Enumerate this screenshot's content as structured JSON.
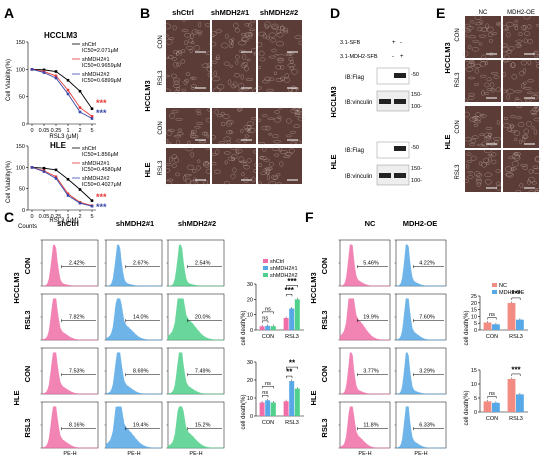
{
  "panels": {
    "a": "A",
    "b": "B",
    "c": "C",
    "d": "D",
    "e": "E",
    "f": "F"
  },
  "colors": {
    "black": "#000000",
    "red": "#e53935",
    "blue": "#3949ab",
    "pink": "#f06fa8",
    "lightblue": "#56a8e6",
    "green": "#4fd08b",
    "salmon": "#f28b82",
    "micro_bg": "#5b3c37"
  },
  "viability": {
    "ylabel": "Cell Viability(%)",
    "xlabel": "RSL3 (μM)",
    "stars": "***",
    "charts": [
      {
        "title": "HCCLM3",
        "legend": [
          {
            "name": "shCtrl",
            "ic50": "IC50=2.071μM"
          },
          {
            "name": "shMDH2#1",
            "ic50": "IC50=0.9659μM"
          },
          {
            "name": "shMDH2#2",
            "ic50": "IC50=0.6899μM"
          }
        ]
      },
      {
        "title": "HLE",
        "legend": [
          {
            "name": "shCtrl",
            "ic50": "IC50=1.856μM"
          },
          {
            "name": "shMDH2#1",
            "ic50": "IC50=0.4580μM"
          },
          {
            "name": "shMDH2#2",
            "ic50": "IC50=0.4027μM"
          }
        ]
      }
    ]
  },
  "chart_data": [
    {
      "type": "line",
      "title": "HCCLM3",
      "x": [
        0,
        0.05,
        0.25,
        1,
        2,
        5
      ],
      "xticklabels": [
        "0",
        "0.05",
        "0.25",
        "1",
        "2",
        "5"
      ],
      "ylim": [
        0,
        150
      ],
      "yticks": [
        0,
        50,
        100,
        150
      ],
      "xlabel": "RSL3 (μM)",
      "ylabel": "Cell Viability(%)",
      "series": [
        {
          "name": "shCtrl",
          "values": [
            100,
            99,
            96,
            80,
            60,
            28
          ]
        },
        {
          "name": "shMDH2#1",
          "values": [
            100,
            96,
            88,
            62,
            30,
            14
          ]
        },
        {
          "name": "shMDH2#2",
          "values": [
            100,
            94,
            84,
            55,
            22,
            10
          ]
        }
      ]
    },
    {
      "type": "line",
      "title": "HLE",
      "x": [
        0,
        0.05,
        0.25,
        1,
        2,
        5
      ],
      "xticklabels": [
        "0",
        "0.05",
        "0.25",
        "1",
        "2",
        "5"
      ],
      "ylim": [
        0,
        150
      ],
      "yticks": [
        0,
        50,
        100,
        150
      ],
      "xlabel": "RSL3 (μM)",
      "ylabel": "Cell Viability(%)",
      "series": [
        {
          "name": "shCtrl",
          "values": [
            100,
            98,
            94,
            72,
            48,
            22
          ]
        },
        {
          "name": "shMDH2#1",
          "values": [
            100,
            92,
            78,
            38,
            18,
            10
          ]
        },
        {
          "name": "shMDH2#2",
          "values": [
            100,
            90,
            74,
            34,
            16,
            9
          ]
        }
      ]
    },
    {
      "type": "bar",
      "ylabel": "cell death(%)",
      "categories": [
        "CON",
        "RSL3"
      ],
      "ylim": [
        0,
        30
      ],
      "yticks": [
        0,
        10,
        20,
        30
      ],
      "sig": {
        "con": "ns",
        "con_wide": "ns",
        "rsl3": "***",
        "rsl3_wide": "***"
      },
      "series": [
        {
          "name": "shCtrl",
          "values": [
            2.4,
            7.8
          ]
        },
        {
          "name": "shMDH2#1",
          "values": [
            2.7,
            14.0
          ]
        },
        {
          "name": "shMDH2#2",
          "values": [
            2.5,
            20.0
          ]
        }
      ]
    },
    {
      "type": "bar",
      "ylabel": "cell death(%)",
      "categories": [
        "CON",
        "RSL3"
      ],
      "ylim": [
        0,
        30
      ],
      "yticks": [
        0,
        10,
        20,
        30
      ],
      "sig": {
        "con": "ns",
        "con_wide": "ns",
        "rsl3": "**",
        "rsl3_wide": "**"
      },
      "series": [
        {
          "name": "shCtrl",
          "values": [
            7.5,
            8.2
          ]
        },
        {
          "name": "shMDH2#1",
          "values": [
            8.7,
            19.4
          ]
        },
        {
          "name": "shMDH2#2",
          "values": [
            7.5,
            15.2
          ]
        }
      ]
    },
    {
      "type": "bar",
      "ylabel": "cell death(%)",
      "categories": [
        "CON",
        "RSL3"
      ],
      "ylim": [
        0,
        25
      ],
      "yticks": [
        0,
        5,
        10,
        15,
        20,
        25
      ],
      "sig": {
        "con": "ns",
        "rsl3": "***"
      },
      "series": [
        {
          "name": "NC",
          "values": [
            5.5,
            19.9
          ]
        },
        {
          "name": "MDH2-OE",
          "values": [
            4.2,
            7.6
          ]
        }
      ]
    },
    {
      "type": "bar",
      "ylabel": "cell death(%)",
      "categories": [
        "CON",
        "RSL3"
      ],
      "ylim": [
        0,
        15
      ],
      "yticks": [
        0,
        5,
        10,
        15
      ],
      "sig": {
        "con": "ns",
        "rsl3": "***"
      },
      "series": [
        {
          "name": "NC",
          "values": [
            3.8,
            11.8
          ]
        },
        {
          "name": "MDH2-OE",
          "values": [
            3.3,
            6.3
          ]
        }
      ]
    }
  ],
  "microscopy_b": {
    "columns": [
      "shCtrl",
      "shMDH2#1",
      "shMDH2#2"
    ],
    "groups": [
      "HCCLM3",
      "HLE"
    ],
    "rows": [
      "CON",
      "RSL3",
      "CON",
      "RSL3"
    ]
  },
  "western": {
    "headers": [
      "3.1-SFB",
      "3.1-MDH2-SFB"
    ],
    "signs": [
      [
        "+",
        "-"
      ],
      [
        "-",
        "+"
      ]
    ],
    "groups": [
      "HCCLM3",
      "HLE"
    ],
    "rows": [
      {
        "label": "IB:Flag",
        "marker": "-50"
      },
      {
        "label": "IB:vinculin",
        "marker_top": "150-",
        "marker_bottom": "100-"
      },
      {
        "label": "IB:Flag",
        "marker": "-50"
      },
      {
        "label": "IB:vinculin",
        "marker_top": "150-",
        "marker_bottom": "100-"
      }
    ]
  },
  "microscopy_e": {
    "columns": [
      "NC",
      "MDH2-OE"
    ],
    "groups": [
      "HCCLM3",
      "HLE"
    ],
    "rows": [
      "CON",
      "RSL3",
      "CON",
      "RSL3"
    ]
  },
  "flow_c": {
    "counts": "Counts",
    "columns": [
      "shCtrl",
      "shMDH2#1",
      "shMDH2#2"
    ],
    "groups": [
      "HCCLM3",
      "HLE"
    ],
    "rows": [
      "CON",
      "RSL3",
      "CON",
      "RSL3"
    ],
    "xlabel": "PE-H",
    "pct": [
      [
        "2.42%",
        "2.67%",
        "2.54%"
      ],
      [
        "7.82%",
        "14.0%",
        "20.0%"
      ],
      [
        "7.53%",
        "8.69%",
        "7.49%"
      ],
      [
        "8.16%",
        "19.4%",
        "15.2%"
      ]
    ]
  },
  "flow_f": {
    "columns": [
      "NC",
      "MDH2-OE"
    ],
    "groups": [
      "HCCLM3",
      "HLE"
    ],
    "rows": [
      "CON",
      "RSL3",
      "CON",
      "RSL3"
    ],
    "xlabel": "PE-H",
    "pct": [
      [
        "5.46%",
        "4.22%"
      ],
      [
        "19.9%",
        "7.60%"
      ],
      [
        "3.77%",
        "3.29%"
      ],
      [
        "11.8%",
        "6.33%"
      ]
    ]
  }
}
